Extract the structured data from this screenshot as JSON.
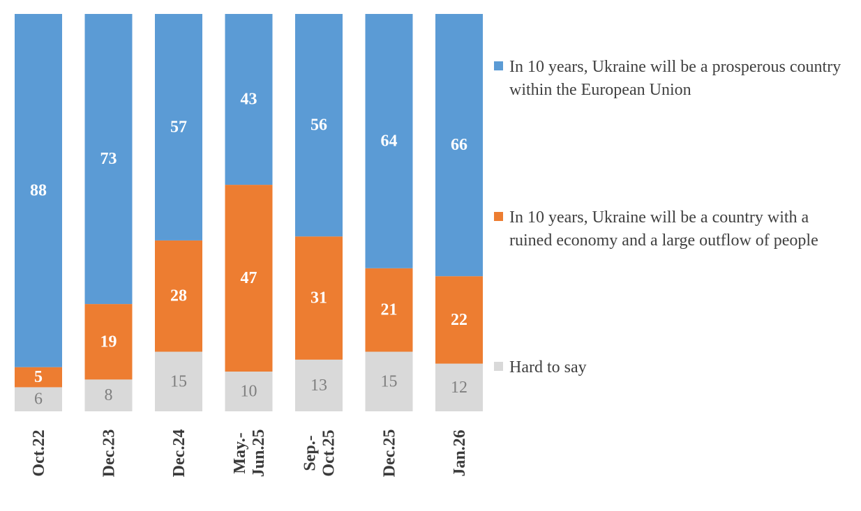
{
  "chart_data": {
    "type": "bar",
    "stacked": true,
    "normalized": true,
    "categories": [
      [
        "Oct.22"
      ],
      [
        "Dec.23"
      ],
      [
        "Dec.24"
      ],
      [
        "May.-",
        "Jun.25"
      ],
      [
        "Sep.-",
        "Oct.25"
      ],
      [
        "Dec.25"
      ],
      [
        "Jan.26"
      ]
    ],
    "series": [
      {
        "name": "Hard to say",
        "color": "#d9d9d9",
        "values": [
          6,
          8,
          15,
          10,
          13,
          15,
          12
        ]
      },
      {
        "name": "In 10 years, Ukraine will be a country with a ruined economy and a large outflow of people",
        "color": "#ed7d31",
        "values": [
          5,
          19,
          28,
          47,
          31,
          21,
          22
        ]
      },
      {
        "name": "In 10 years, Ukraine will be a prosperous country within the European Union",
        "color": "#5b9bd5",
        "values": [
          88,
          73,
          57,
          43,
          56,
          64,
          66
        ]
      }
    ],
    "legend_position": "right",
    "grid": false
  }
}
